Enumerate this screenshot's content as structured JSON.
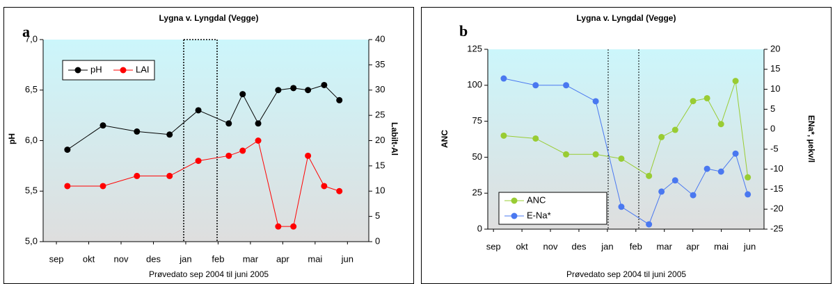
{
  "chart_data": [
    {
      "type": "line",
      "panel_label": "a",
      "title": "Lygna v. Lyngdal (Vegge)",
      "x_label": "Prøvedato sep 2004 til juni 2005",
      "y_label": "pH",
      "y2_label": "Labilt-Al",
      "x": [
        0.34,
        1.44,
        2.49,
        3.5,
        4.39,
        5.33,
        5.76,
        6.24,
        6.86,
        7.33,
        7.78,
        8.28,
        8.75
      ],
      "xlim": [
        -0.41,
        9.66
      ],
      "xticks": [
        {
          "value": 0,
          "label": "sep"
        },
        {
          "value": 1,
          "label": "okt"
        },
        {
          "value": 2,
          "label": "nov"
        },
        {
          "value": 3,
          "label": "des"
        },
        {
          "value": 4,
          "label": "jan"
        },
        {
          "value": 5,
          "label": "feb"
        },
        {
          "value": 6,
          "label": "mar"
        },
        {
          "value": 7,
          "label": "apr"
        },
        {
          "value": 8,
          "label": "mai"
        },
        {
          "value": 9,
          "label": "jun"
        }
      ],
      "ylim": [
        5,
        7
      ],
      "yticks": [
        {
          "value": 5,
          "label": "5,0"
        },
        {
          "value": 5.5,
          "label": "5,5"
        },
        {
          "value": 6,
          "label": "6,0"
        },
        {
          "value": 6.5,
          "label": "6,5"
        },
        {
          "value": 7,
          "label": "7,0"
        }
      ],
      "y2lim": [
        0,
        40
      ],
      "y2ticks": [
        0,
        5,
        10,
        15,
        20,
        25,
        30,
        35,
        40
      ],
      "legend": "upper left",
      "series": [
        {
          "name": "pH",
          "color": "#000000",
          "values": [
            5.91,
            6.15,
            6.09,
            6.06,
            6.3,
            6.17,
            6.46,
            6.17,
            6.5,
            6.52,
            6.5,
            6.55,
            6.4
          ]
        },
        {
          "name": "LAI",
          "color": "#ff0000",
          "axis": "y2",
          "values": [
            11,
            11,
            13,
            13,
            16,
            17,
            18,
            20,
            3,
            3,
            17,
            11,
            10
          ]
        }
      ]
    },
    {
      "type": "line",
      "panel_label": "b",
      "title": "Lygna v. Lyngdal (Vegge)",
      "x_label": "Prøvedato sep 2004 til juni 2005",
      "y_label": "ANC",
      "y2_label": "ENa*, µekv/l",
      "x": [
        0.36,
        1.48,
        2.55,
        3.59,
        4.49,
        5.46,
        5.9,
        6.38,
        7.01,
        7.5,
        7.99,
        8.5,
        8.93
      ],
      "xlim": [
        -0.2,
        9.5
      ],
      "xticks": [
        {
          "value": 0,
          "label": "sep"
        },
        {
          "value": 1,
          "label": "okt"
        },
        {
          "value": 2,
          "label": "nov"
        },
        {
          "value": 3,
          "label": "des"
        },
        {
          "value": 4,
          "label": "jan"
        },
        {
          "value": 5,
          "label": "feb"
        },
        {
          "value": 6,
          "label": "mar"
        },
        {
          "value": 7,
          "label": "apr"
        },
        {
          "value": 8,
          "label": "mai"
        },
        {
          "value": 9,
          "label": "jun"
        }
      ],
      "ylim": [
        0,
        125
      ],
      "yticks": [
        0,
        25,
        50,
        75,
        100,
        125
      ],
      "y2lim": [
        -25,
        20
      ],
      "y2ticks": [
        -25,
        -20,
        -15,
        -10,
        -5,
        0,
        5,
        10,
        15,
        20
      ],
      "legend": "lower left",
      "series": [
        {
          "name": "ANC",
          "color": "#99cc33",
          "values": [
            65,
            63,
            52,
            52,
            49,
            37,
            64,
            69,
            89,
            91,
            73,
            103,
            36
          ]
        },
        {
          "name": "E-Na*",
          "color": "#4a78f0",
          "axis": "y2",
          "values": [
            12.7,
            11,
            11,
            7,
            -19.4,
            -23.8,
            -15.6,
            -12.8,
            -16.5,
            -9.9,
            -10.6,
            -6.1,
            -16.3
          ]
        }
      ]
    }
  ]
}
